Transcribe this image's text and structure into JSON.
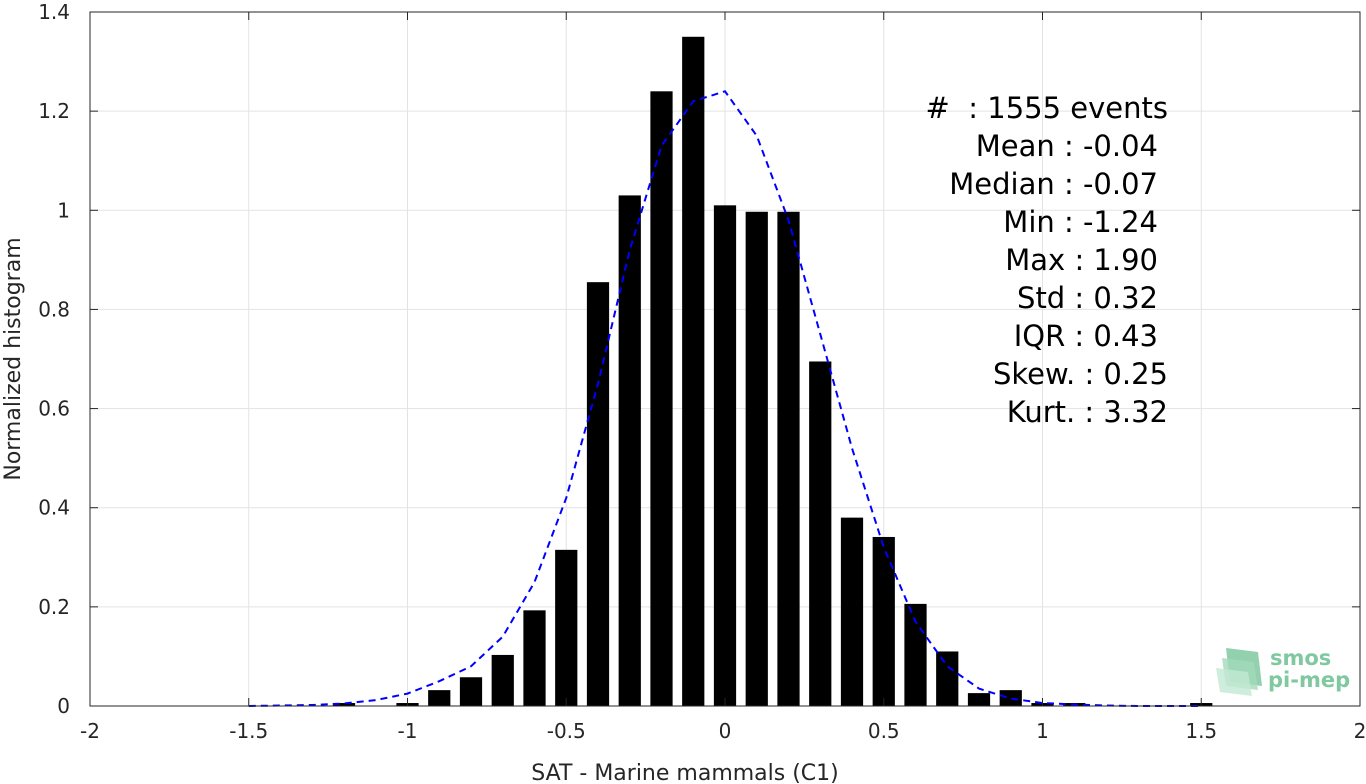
{
  "chart_data": {
    "type": "bar",
    "xlabel": "SAT - Marine mammals (C1)",
    "ylabel": "Normalized histogram",
    "xlim": [
      -2,
      2
    ],
    "ylim": [
      0,
      1.4
    ],
    "grid": true,
    "x_ticks": [
      -2,
      -1.5,
      -1,
      -0.5,
      0,
      0.5,
      1,
      1.5,
      2
    ],
    "x_tick_labels": [
      "-2",
      "-1.5",
      "-1",
      "-0.5",
      "0",
      "0.5",
      "1",
      "1.5",
      "2"
    ],
    "y_ticks": [
      0,
      0.2,
      0.4,
      0.6,
      0.8,
      1,
      1.2,
      1.4
    ],
    "y_tick_labels": [
      "0",
      "0.2",
      "0.4",
      "0.6",
      "0.8",
      "1",
      "1.2",
      "1.4"
    ],
    "bar_color": "#000000",
    "bar_width": 0.07,
    "bars": {
      "x": [
        -1.2,
        -1.0,
        -0.9,
        -0.8,
        -0.7,
        -0.6,
        -0.5,
        -0.4,
        -0.3,
        -0.2,
        -0.1,
        0.0,
        0.1,
        0.2,
        0.3,
        0.4,
        0.5,
        0.6,
        0.7,
        0.8,
        0.9,
        1.0,
        1.1,
        1.5
      ],
      "values": [
        0.006,
        0.006,
        0.032,
        0.058,
        0.103,
        0.193,
        0.315,
        0.855,
        1.03,
        1.24,
        1.35,
        1.01,
        0.997,
        0.997,
        0.695,
        0.38,
        0.341,
        0.206,
        0.11,
        0.026,
        0.032,
        0.006,
        0.006,
        0.006
      ]
    },
    "fit_curve": {
      "style": "dashed",
      "color": "#0000ff",
      "x": [
        -1.5,
        -1.4,
        -1.3,
        -1.2,
        -1.1,
        -1.0,
        -0.9,
        -0.8,
        -0.7,
        -0.6,
        -0.5,
        -0.4,
        -0.3,
        -0.2,
        -0.1,
        0.0,
        0.1,
        0.2,
        0.3,
        0.4,
        0.5,
        0.6,
        0.7,
        0.8,
        0.9,
        1.0,
        1.1,
        1.2,
        1.3,
        1.4,
        1.5
      ],
      "y": [
        0.0,
        0.001,
        0.002,
        0.005,
        0.012,
        0.025,
        0.05,
        0.08,
        0.14,
        0.25,
        0.42,
        0.65,
        0.92,
        1.13,
        1.22,
        1.24,
        1.15,
        0.98,
        0.75,
        0.52,
        0.32,
        0.17,
        0.08,
        0.035,
        0.015,
        0.006,
        0.003,
        0.001,
        0.0,
        0.0,
        0.0
      ]
    },
    "annotations": [
      "#  : 1555 events",
      "Mean : -0.04",
      "Median : -0.07",
      "Min : -1.24",
      "Max : 1.90",
      "Std : 0.32",
      "IQR : 0.43",
      "Skew. : 0.25",
      "Kurt. : 3.32"
    ]
  },
  "logo": {
    "line1": "smos",
    "line2": "pi-mep"
  }
}
